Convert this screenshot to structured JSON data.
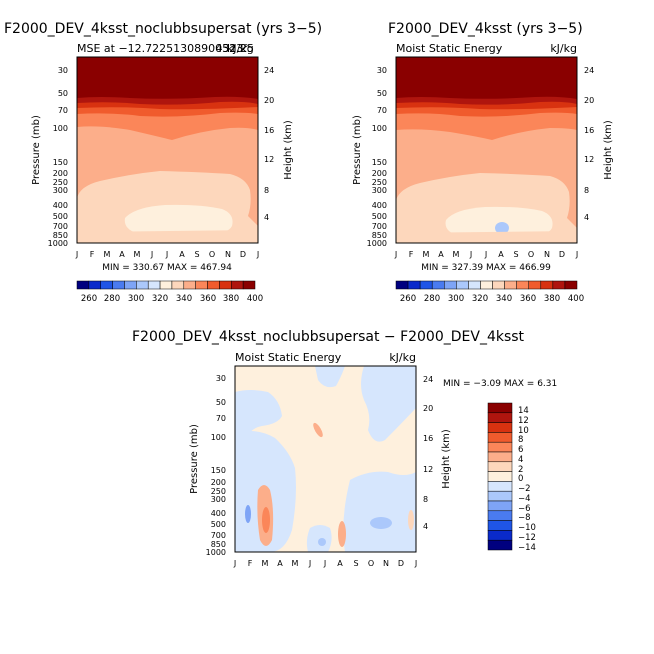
{
  "colors": [
    "#00007f",
    "#0a2acb",
    "#1f55e6",
    "#4a7bf0",
    "#7ea4f6",
    "#abc8fb",
    "#d6e6fd",
    "#fef0dd",
    "#fdd7bc",
    "#fcae8a",
    "#fb8659",
    "#f05b2d",
    "#d83210",
    "#af150e",
    "#8a0000"
  ],
  "panels": [
    {
      "title": "F2000_DEV_4ksst_noclubbsupersat (yrs 3−5)",
      "subtitle_left": "MSE at −12.72251308900523°",
      "subtitle_right": "kJ/kg",
      "subtitle_right_extra": "431.25",
      "minmax": "MIN = 330.67  MAX = 467.94",
      "ylabel": "Pressure (mb)",
      "ylabel2": "Height (km)",
      "cbar_labels": [
        "260",
        "280",
        "300",
        "320",
        "340",
        "360",
        "380",
        "400"
      ]
    },
    {
      "title": "F2000_DEV_4ksst (yrs 3−5)",
      "subtitle_left": "Moist Static Energy",
      "subtitle_right": "kJ/kg",
      "minmax": "MIN = 327.39  MAX = 466.99",
      "ylabel": "Pressure (mb)",
      "ylabel2": "Height (km)",
      "cbar_labels": [
        "260",
        "280",
        "300",
        "320",
        "340",
        "360",
        "380",
        "400"
      ]
    },
    {
      "title": "F2000_DEV_4ksst_noclubbsupersat − F2000_DEV_4ksst",
      "subtitle_left": "Moist Static Energy",
      "subtitle_right": "kJ/kg",
      "minmax": "MIN =  −3.09  MAX =    6.31",
      "ylabel": "Pressure (mb)",
      "ylabel2": "Height (km)",
      "cbar_labels": [
        "14",
        "12",
        "10",
        "8",
        "6",
        "4",
        "2",
        "0",
        "−2",
        "−4",
        "−6",
        "−8",
        "−10",
        "−12",
        "−14"
      ]
    }
  ],
  "chart_data": [
    {
      "type": "heatmap",
      "title": "F2000_DEV_4ksst_noclubbsupersat (yrs 3−5)",
      "variable": "Moist Static Energy",
      "units": "kJ/kg",
      "x_ticks": [
        "J",
        "F",
        "M",
        "A",
        "M",
        "J",
        "J",
        "A",
        "S",
        "O",
        "N",
        "D",
        "J"
      ],
      "pressure_ticks": [
        30,
        50,
        70,
        100,
        150,
        200,
        250,
        300,
        400,
        500,
        700,
        850,
        1000
      ],
      "height_ticks": [
        4,
        8,
        12,
        16,
        20,
        24
      ],
      "contour_levels": [
        260,
        270,
        280,
        290,
        300,
        310,
        320,
        330,
        340,
        350,
        360,
        370,
        380,
        390,
        400
      ],
      "min": 330.67,
      "max": 467.94
    },
    {
      "type": "heatmap",
      "title": "F2000_DEV_4ksst (yrs 3−5)",
      "variable": "Moist Static Energy",
      "units": "kJ/kg",
      "x_ticks": [
        "J",
        "F",
        "M",
        "A",
        "M",
        "J",
        "J",
        "A",
        "S",
        "O",
        "N",
        "D",
        "J"
      ],
      "pressure_ticks": [
        30,
        50,
        70,
        100,
        150,
        200,
        250,
        300,
        400,
        500,
        700,
        850,
        1000
      ],
      "height_ticks": [
        4,
        8,
        12,
        16,
        20,
        24
      ],
      "contour_levels": [
        260,
        270,
        280,
        290,
        300,
        310,
        320,
        330,
        340,
        350,
        360,
        370,
        380,
        390,
        400
      ],
      "min": 327.39,
      "max": 466.99
    },
    {
      "type": "heatmap",
      "title": "F2000_DEV_4ksst_noclubbsupersat − F2000_DEV_4ksst",
      "variable": "Moist Static Energy",
      "units": "kJ/kg",
      "x_ticks": [
        "J",
        "F",
        "M",
        "A",
        "M",
        "J",
        "J",
        "A",
        "S",
        "O",
        "N",
        "D",
        "J"
      ],
      "pressure_ticks": [
        30,
        50,
        70,
        100,
        150,
        200,
        250,
        300,
        400,
        500,
        700,
        850,
        1000
      ],
      "height_ticks": [
        4,
        8,
        12,
        16,
        20,
        24
      ],
      "contour_levels": [
        -14,
        -12,
        -10,
        -8,
        -6,
        -4,
        -2,
        0,
        2,
        4,
        6,
        8,
        10,
        12,
        14
      ],
      "min": -3.09,
      "max": 6.31
    }
  ]
}
